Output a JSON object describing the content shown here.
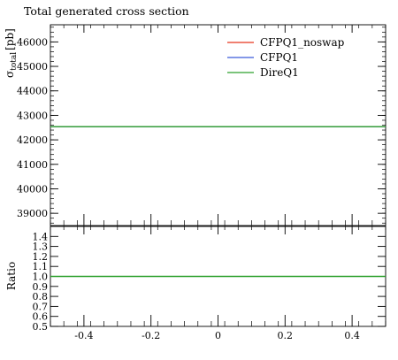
{
  "chart_data": [
    {
      "type": "line",
      "title": "Total generated cross section",
      "ylabel": "σ_total [pb]",
      "ylabel_parts": {
        "symbol": "σ",
        "subscript": "total",
        "unit": "[pb]"
      },
      "xlim": [
        -0.5,
        0.5
      ],
      "ylim": [
        38500,
        46700
      ],
      "yticks": [
        39000,
        40000,
        41000,
        42000,
        43000,
        44000,
        45000,
        46000
      ],
      "ytick_labels": [
        "39000",
        "40000",
        "41000",
        "42000",
        "43000",
        "44000",
        "45000",
        "46000"
      ],
      "xticks": [
        -0.4,
        -0.2,
        0,
        0.2,
        0.4
      ],
      "legend_position": "top-right",
      "series": [
        {
          "name": "CFPQ1_noswap",
          "label_main": "CFPQ1",
          "label_sub": "noswap",
          "color": "#e8341c",
          "x": [
            -0.5,
            0.5
          ],
          "y": [
            42540,
            42540
          ]
        },
        {
          "name": "CFPQ1",
          "label_main": "CFPQ1",
          "label_sub": "",
          "color": "#3b5bdb",
          "x": [
            -0.5,
            0.5
          ],
          "y": [
            42540,
            42540
          ]
        },
        {
          "name": "DireQ1",
          "label_main": "DireQ1",
          "label_sub": "",
          "color": "#2ca02c",
          "x": [
            -0.5,
            0.5
          ],
          "y": [
            42540,
            42540
          ]
        }
      ]
    },
    {
      "type": "line",
      "ylabel": "Ratio",
      "xlim": [
        -0.5,
        0.5
      ],
      "ylim": [
        0.5,
        1.5
      ],
      "yticks": [
        0.5,
        0.6,
        0.7,
        0.8,
        0.9,
        1.0,
        1.1,
        1.2,
        1.3,
        1.4
      ],
      "ytick_labels": [
        "0.5",
        "0.6",
        "0.7",
        "0.8",
        "0.9",
        "1.0",
        "1.1",
        "1.2",
        "1.3",
        "1.4"
      ],
      "xticks": [
        -0.4,
        -0.2,
        0,
        0.2,
        0.4
      ],
      "xtick_labels": [
        "-0.4",
        "-0.2",
        "0",
        "0.2",
        "0.4"
      ],
      "series": [
        {
          "name": "DireQ1",
          "color": "#2ca02c",
          "x": [
            -0.5,
            0.5
          ],
          "y": [
            1.0,
            1.0
          ]
        }
      ]
    }
  ]
}
